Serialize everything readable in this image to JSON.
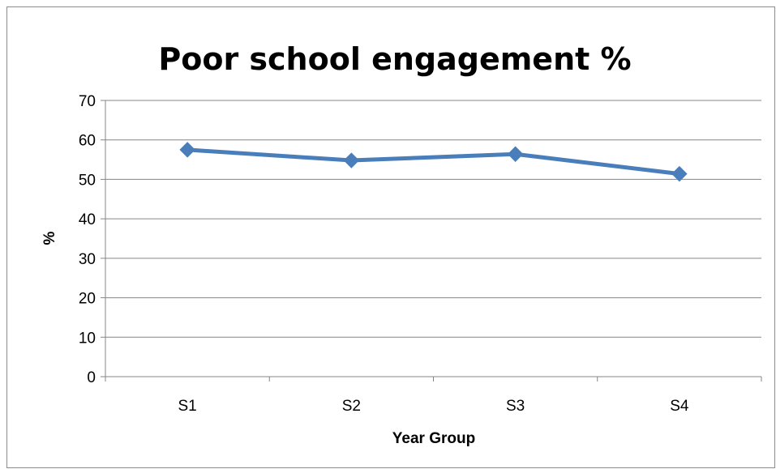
{
  "chart_data": {
    "type": "line",
    "title": "Poor school engagement %",
    "xlabel": "Year Group",
    "ylabel": "%",
    "categories": [
      "S1",
      "S2",
      "S3",
      "S4"
    ],
    "series": [
      {
        "values": [
          57.5,
          54.8,
          56.4,
          51.4
        ],
        "color": "#4a7ebb",
        "marker": "diamond"
      }
    ],
    "ylim": [
      0,
      70
    ],
    "yticks": [
      0,
      10,
      20,
      30,
      40,
      50,
      60,
      70
    ],
    "grid": true,
    "legend": "none"
  }
}
